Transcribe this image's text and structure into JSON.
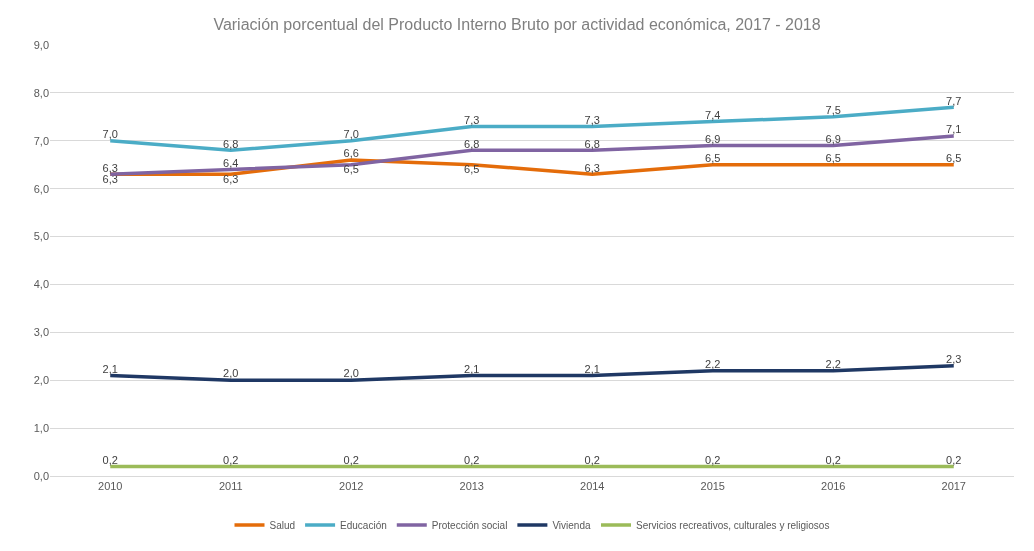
{
  "chart_data": {
    "type": "line",
    "title": "Variación porcentual del Producto Interno Bruto por actividad económica, 2017 - 2018",
    "categories": [
      "2010",
      "2011",
      "2012",
      "2013",
      "2014",
      "2015",
      "2016",
      "2017"
    ],
    "series": [
      {
        "name": "Salud",
        "color": "#e46c0a",
        "values": [
          6.3,
          6.3,
          6.6,
          6.5,
          6.3,
          6.5,
          6.5,
          6.5
        ],
        "value_labels": [
          "6,3",
          "6,3",
          "6,6",
          "6,5",
          "6,3",
          "6,5",
          "6,5",
          "6,5"
        ]
      },
      {
        "name": "Educación",
        "color": "#4bacc6",
        "values": [
          7.0,
          6.8,
          7.0,
          7.3,
          7.3,
          7.4,
          7.5,
          7.7
        ],
        "value_labels": [
          "7,0",
          "6,8",
          "7,0",
          "7,3",
          "7,3",
          "7,4",
          "7,5",
          "7,7"
        ]
      },
      {
        "name": "Protección social",
        "color": "#8064a2",
        "values": [
          6.3,
          6.4,
          6.5,
          6.8,
          6.8,
          6.9,
          6.9,
          7.1
        ],
        "value_labels": [
          "6,3",
          "6,4",
          "6,5",
          "6,8",
          "6,8",
          "6,9",
          "6,9",
          "7,1"
        ]
      },
      {
        "name": "Vivienda",
        "color": "#1f3864",
        "values": [
          2.1,
          2.0,
          2.0,
          2.1,
          2.1,
          2.2,
          2.2,
          2.3
        ],
        "value_labels": [
          "2,1",
          "2,0",
          "2,0",
          "2,1",
          "2,1",
          "2,2",
          "2,2",
          "2,3"
        ]
      },
      {
        "name": "Servicios recreativos, culturales y religiosos",
        "color": "#9bbb59",
        "values": [
          0.2,
          0.2,
          0.2,
          0.2,
          0.2,
          0.2,
          0.2,
          0.2
        ],
        "value_labels": [
          "0,2",
          "0,2",
          "0,2",
          "0,2",
          "0,2",
          "0,2",
          "0,2",
          "0,2"
        ]
      }
    ],
    "ylim": [
      0,
      9
    ],
    "yticks": [
      {
        "value": 0,
        "label": "0,0"
      },
      {
        "value": 1,
        "label": "1,0"
      },
      {
        "value": 2,
        "label": "2,0"
      },
      {
        "value": 3,
        "label": "3,0"
      },
      {
        "value": 4,
        "label": "4,0"
      },
      {
        "value": 5,
        "label": "5,0"
      },
      {
        "value": 6,
        "label": "6,0"
      },
      {
        "value": 7,
        "label": "7,0"
      },
      {
        "value": 8,
        "label": "8,0"
      },
      {
        "value": 9,
        "label": "9,0"
      }
    ],
    "grid": "y",
    "legend": "bottom",
    "marker": "none",
    "line_style": "solid"
  }
}
